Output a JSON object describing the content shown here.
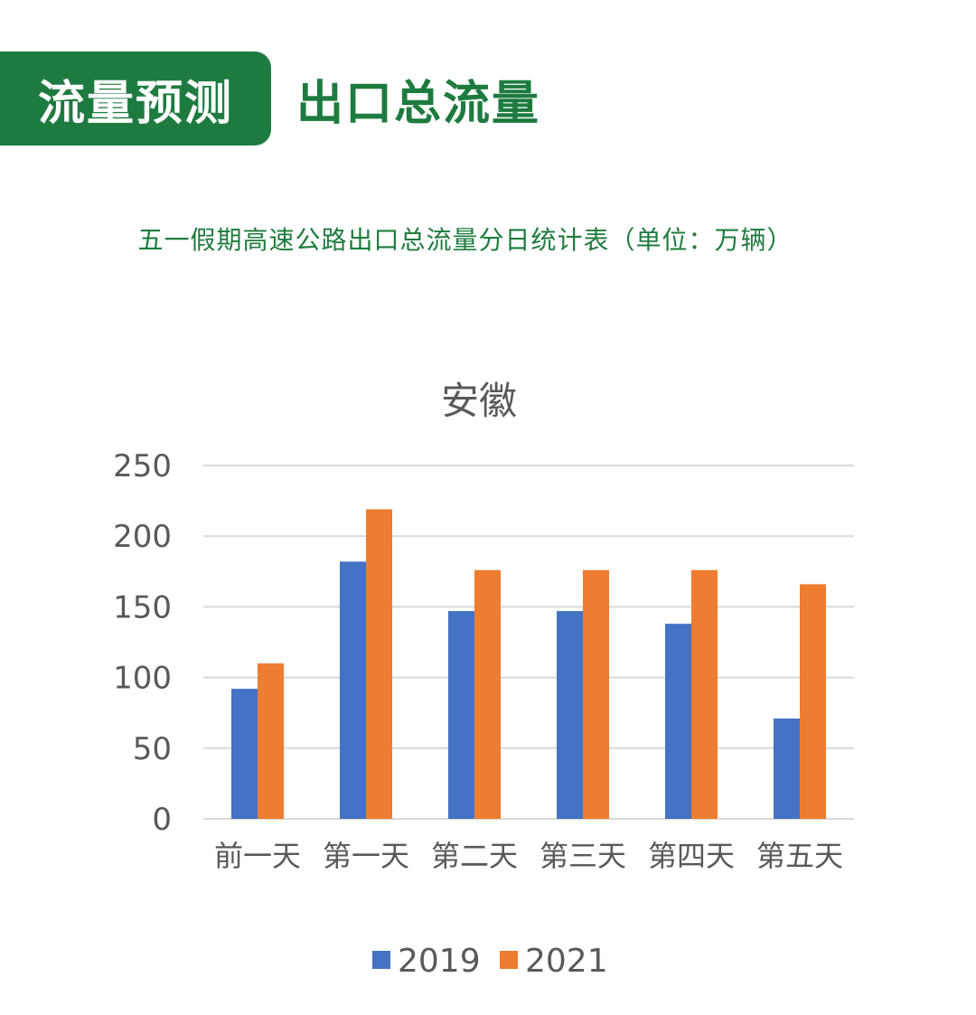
{
  "header": {
    "badge_label": "流量预测",
    "title": "出口总流量"
  },
  "subtitle": "五一假期高速公路出口总流量分日统计表（单位：万辆）",
  "colors": {
    "brand_green": "#1e7b3f",
    "series_2019": "#4472c4",
    "series_2021": "#ed7d31",
    "gridline": "#d9d9d9",
    "axis_text": "#595959"
  },
  "chart_data": {
    "type": "bar",
    "title": "安徽",
    "categories": [
      "前一天",
      "第一天",
      "第二天",
      "第三天",
      "第四天",
      "第五天"
    ],
    "series": [
      {
        "name": "2019",
        "values": [
          92,
          182,
          147,
          147,
          138,
          71
        ]
      },
      {
        "name": "2021",
        "values": [
          110,
          219,
          176,
          176,
          176,
          166
        ]
      }
    ],
    "ylim": [
      0,
      250
    ],
    "yticks": [
      "0",
      "50",
      "100",
      "150",
      "200",
      "250"
    ],
    "xlabel": "",
    "ylabel": "",
    "grid": true,
    "legend_position": "bottom"
  }
}
